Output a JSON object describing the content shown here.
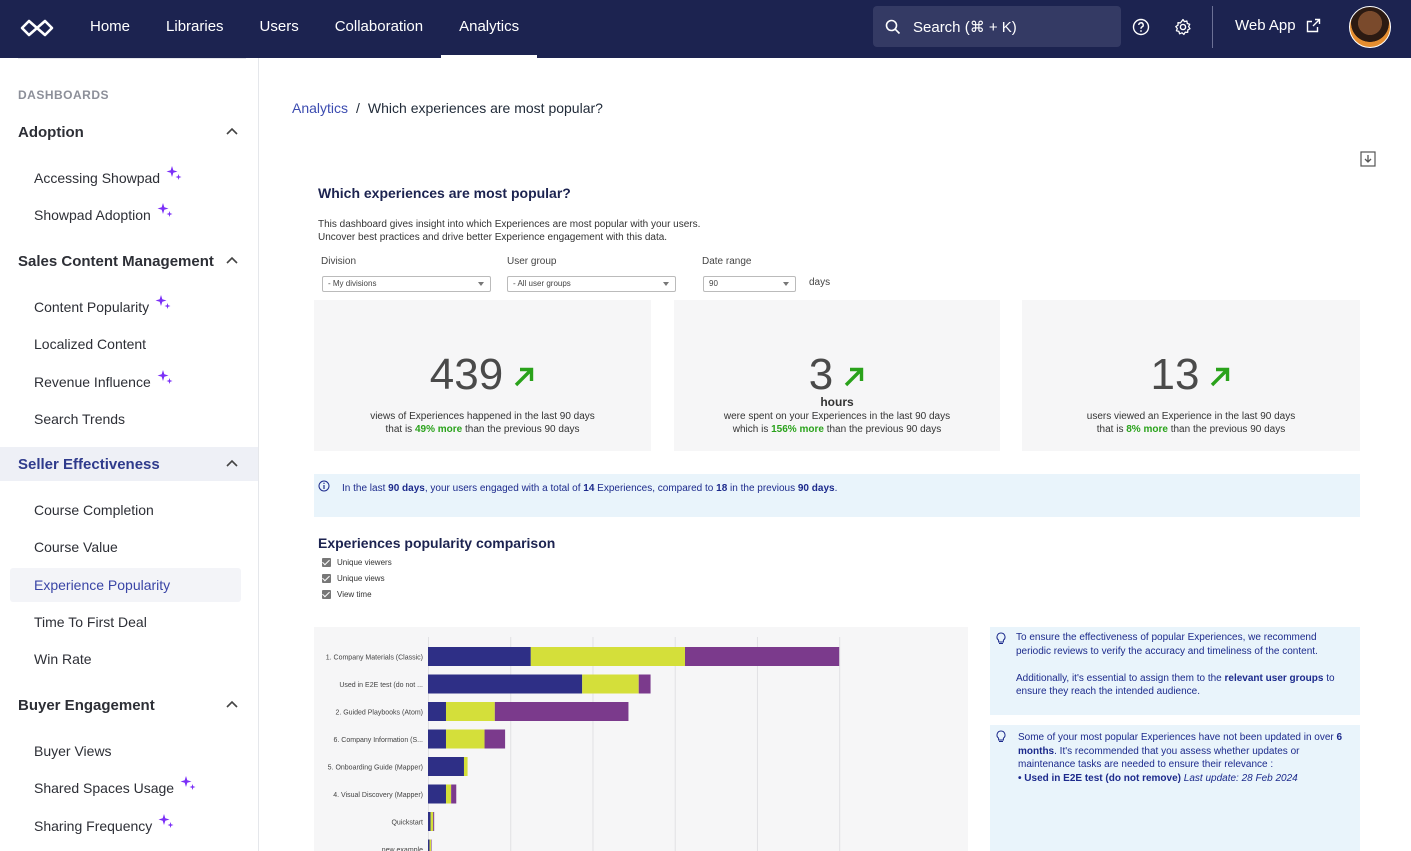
{
  "nav": {
    "items": [
      "Home",
      "Libraries",
      "Users",
      "Collaboration",
      "Analytics"
    ],
    "search_placeholder": "Search (⌘ + K)",
    "web_app": "Web App"
  },
  "sidebar": {
    "heading": "DASHBOARDS",
    "groups": [
      {
        "label": "Adoption",
        "items": [
          "Accessing Showpad",
          "Showpad Adoption"
        ]
      },
      {
        "label": "Sales Content Management",
        "items": [
          "Content Popularity",
          "Localized Content",
          "Revenue Influence",
          "Search Trends"
        ]
      },
      {
        "label": "Seller Effectiveness",
        "items": [
          "Course Completion",
          "Course Value",
          "Experience Popularity",
          "Time To First Deal",
          "Win Rate"
        ]
      },
      {
        "label": "Buyer Engagement",
        "items": [
          "Buyer Views",
          "Shared Spaces Usage",
          "Sharing Frequency"
        ]
      }
    ]
  },
  "breadcrumb": {
    "parent": "Analytics",
    "separator": "/",
    "current": "Which experiences are most popular?"
  },
  "dashboard": {
    "title": "Which experiences are most popular?",
    "desc1": "This dashboard gives insight into which Experiences are most popular with your users.",
    "desc2": "Uncover best practices and drive better Experience engagement with this data.",
    "filters": {
      "division_label": "Division",
      "division_value": "- My divisions",
      "usergroup_label": "User group",
      "usergroup_value": "- All user groups",
      "daterange_label": "Date range",
      "daterange_value": "90",
      "days": "days"
    },
    "kpis": [
      {
        "value": "439",
        "unit": "",
        "line1": "views of Experiences happened in the last 90 days",
        "pre": "that is ",
        "pct": "49% more",
        "post": " than the previous 90 days"
      },
      {
        "value": "3",
        "unit": "hours",
        "line1": "were spent on your Experiences in the last 90 days",
        "pre": "which is ",
        "pct": "156% more",
        "post": " than the previous 90 days"
      },
      {
        "value": "13",
        "unit": "",
        "line1": "users viewed an Experience in the last 90 days",
        "pre": "that is ",
        "pct": "8% more",
        "post": " than the previous 90 days"
      }
    ],
    "info": {
      "a": "In the last ",
      "b": "90 days",
      "c": ", your users engaged with a total of ",
      "d": "14",
      "e": " Experiences, compared to ",
      "f": "18",
      "g": " in the previous ",
      "h": "90 days",
      "i": "."
    },
    "comparison_title": "Experiences popularity comparison",
    "checkboxes": [
      "Unique viewers",
      "Unique views",
      "View time"
    ],
    "tip1": {
      "a": "To ensure the effectiveness of popular Experiences, we recommend",
      "b": "periodic reviews to verify the accuracy and timeliness of the content.",
      "c": "Additionally, it's essential to assign them to the ",
      "d": "relevant user groups",
      "e": " to",
      "f": "ensure they reach the intended audience."
    },
    "tip2": {
      "a": "Some of your most popular Experiences have not been updated in over ",
      "b": "6",
      "c": "months",
      "d": ". It's recommended that you assess whether updates or",
      "e": "maintenance tasks are needed to ensure their relevance :",
      "f": "• Used in E2E test (do not remove)",
      "g": " Last update: 28 Feb 2024"
    }
  },
  "colors": {
    "navy": "#1c2350",
    "viewers": "#2e2f86",
    "views": "#d4df3a",
    "time": "#7b3a8c",
    "accent_green": "#2aa21b"
  },
  "chart_data": {
    "type": "bar",
    "orientation": "horizontal",
    "stacked": true,
    "categories": [
      "1. Company Materials (Classic)",
      "Used in E2E test (do not ...",
      "2. Guided Playbooks (Atom)",
      "6. Company Information (S...",
      "5. Onboarding Guide (Mapper)",
      "4. Visual Discovery (Mapper)",
      "Quickstart",
      "new example"
    ],
    "series": [
      {
        "name": "Unique viewers",
        "color": "#2e2f86",
        "values": [
          20,
          30,
          3.5,
          3.5,
          7,
          3.5,
          0.5,
          0.3
        ]
      },
      {
        "name": "Unique views",
        "color": "#d4df3a",
        "values": [
          30,
          11,
          9.5,
          7.5,
          0.7,
          1,
          0.5,
          0.3
        ]
      },
      {
        "name": "View time",
        "color": "#7b3a8c",
        "values": [
          30,
          2.3,
          26,
          4,
          0,
          1,
          0.2,
          0.1
        ]
      }
    ],
    "xlim": [
      0,
      100
    ],
    "grid": true
  }
}
